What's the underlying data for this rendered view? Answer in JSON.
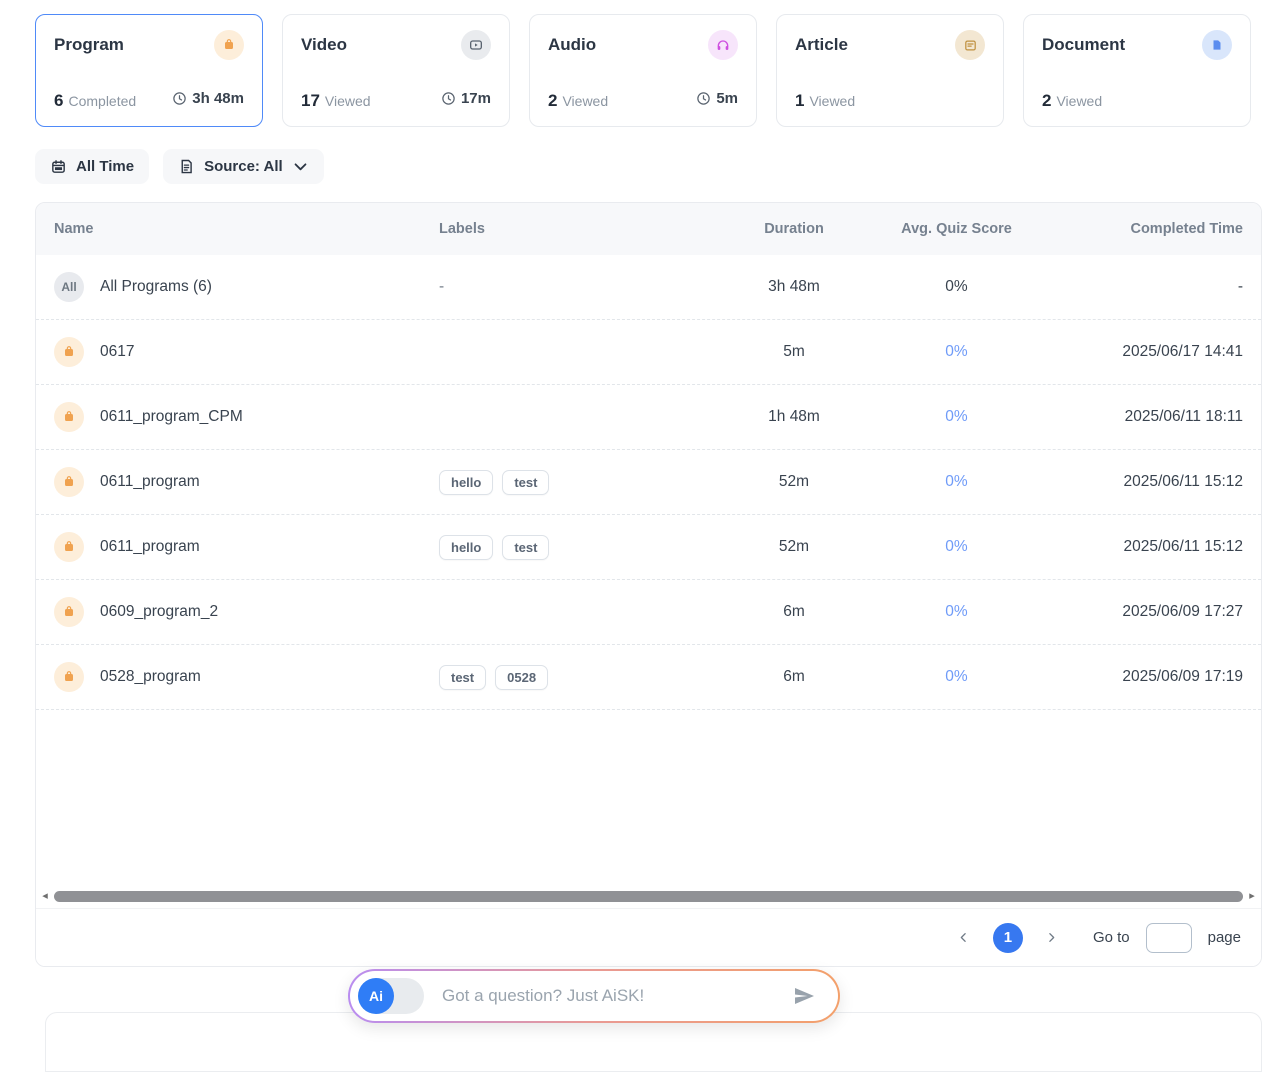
{
  "cards": [
    {
      "title": "Program",
      "count": "6",
      "count_label": "Completed",
      "time": "3h 48m",
      "selected": true,
      "icon": "program-icon",
      "icon_color": "#f0a24f",
      "icon_bg": "#fdeeda"
    },
    {
      "title": "Video",
      "count": "17",
      "count_label": "Viewed",
      "time": "17m",
      "selected": false,
      "icon": "video-icon",
      "icon_color": "#5a6470",
      "icon_bg": "#e9ebee"
    },
    {
      "title": "Audio",
      "count": "2",
      "count_label": "Viewed",
      "time": "5m",
      "selected": false,
      "icon": "headphones-icon",
      "icon_color": "#cf4fe0",
      "icon_bg": "#f7e5fb"
    },
    {
      "title": "Article",
      "count": "1",
      "count_label": "Viewed",
      "time": "",
      "selected": false,
      "icon": "article-icon",
      "icon_color": "#c0913f",
      "icon_bg": "#f3e7d2"
    },
    {
      "title": "Document",
      "count": "2",
      "count_label": "Viewed",
      "time": "",
      "selected": false,
      "icon": "document-icon",
      "icon_color": "#5b8def",
      "icon_bg": "#d9e6fb"
    }
  ],
  "filters": {
    "time": "All Time",
    "source": "Source: All"
  },
  "table": {
    "columns": {
      "name": "Name",
      "labels": "Labels",
      "duration": "Duration",
      "score": "Avg. Quiz Score",
      "completed": "Completed Time"
    },
    "rows": [
      {
        "name": "All Programs (6)",
        "avatar_text": "All",
        "labels": [],
        "labels_empty": "-",
        "duration": "3h 48m",
        "score": "0%",
        "score_blue": false,
        "completed": "-"
      },
      {
        "name": "0617",
        "avatar_text": "",
        "labels": [],
        "duration": "5m",
        "score": "0%",
        "score_blue": true,
        "completed": "2025/06/17 14:41"
      },
      {
        "name": "0611_program_CPM",
        "avatar_text": "",
        "labels": [],
        "duration": "1h 48m",
        "score": "0%",
        "score_blue": true,
        "completed": "2025/06/11 18:11"
      },
      {
        "name": "0611_program",
        "avatar_text": "",
        "labels": [
          "hello",
          "test"
        ],
        "duration": "52m",
        "score": "0%",
        "score_blue": true,
        "completed": "2025/06/11 15:12"
      },
      {
        "name": "0611_program",
        "avatar_text": "",
        "labels": [
          "hello",
          "test"
        ],
        "duration": "52m",
        "score": "0%",
        "score_blue": true,
        "completed": "2025/06/11 15:12"
      },
      {
        "name": "0609_program_2",
        "avatar_text": "",
        "labels": [],
        "duration": "6m",
        "score": "0%",
        "score_blue": true,
        "completed": "2025/06/09 17:27"
      },
      {
        "name": "0528_program",
        "avatar_text": "",
        "labels": [
          "test",
          "0528"
        ],
        "duration": "6m",
        "score": "0%",
        "score_blue": true,
        "completed": "2025/06/09 17:19"
      }
    ]
  },
  "pagination": {
    "current_page": "1",
    "goto_label": "Go to",
    "page_label": "page"
  },
  "aisk": {
    "badge": "Ai",
    "placeholder": "Got a question? Just AiSK!"
  },
  "colors": {
    "accent_blue": "#3778f0",
    "score_link_blue": "#6f9bf8",
    "selected_border": "#4f8af8",
    "program_orange": "#f0a24f",
    "audio_purple": "#cf4fe0",
    "article_tan": "#c0913f",
    "document_blue": "#5b8def"
  }
}
